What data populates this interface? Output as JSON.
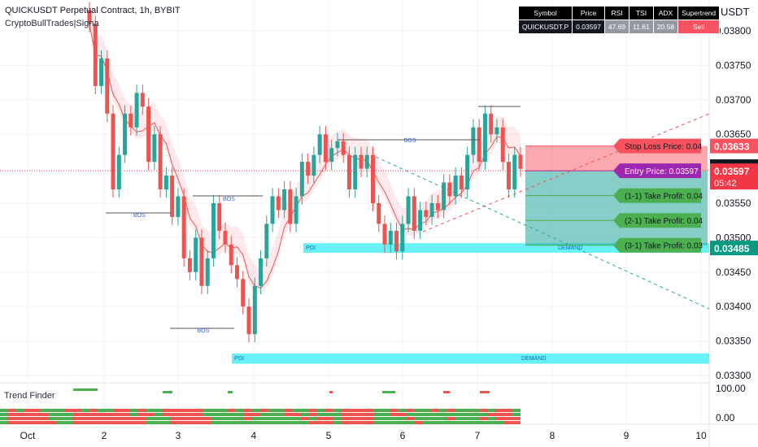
{
  "header": {
    "title": "QUICKUSDT Perpetual Contract, 1h, BYBIT",
    "indicator": "CryptoBullTrades|Signa"
  },
  "price_unit": "USDT",
  "stats_table": {
    "headers": [
      "Symbol",
      "Price",
      "RSI",
      "TSI",
      "ADX",
      "Supertrend"
    ],
    "values": [
      "QUICKUSDT.P",
      "0.03597",
      "47.69",
      "11.61",
      "20.58",
      "Sell"
    ]
  },
  "colors": {
    "up": "#26a69a",
    "down": "#ef5350",
    "stop_loss": "#f7525f",
    "entry": "#9c27b0",
    "take_profit": "#4caf50",
    "demand_zone": "#4df0f7",
    "price_current": "#131722"
  },
  "chart_data": {
    "type": "candlestick",
    "title": "QUICKUSDT Perpetual Contract, 1h, BYBIT",
    "xlabel": "",
    "ylabel": "",
    "ylim": [
      0.0329,
      0.0383
    ],
    "x_ticks": [
      "Oct",
      "2",
      "3",
      "4",
      "5",
      "6",
      "7",
      "8",
      "9",
      "10"
    ],
    "y_ticks": [
      "0.03800",
      "0.03750",
      "0.03700",
      "0.03650",
      "0.03550",
      "0.03500",
      "0.03450",
      "0.03400",
      "0.03350",
      "0.03300"
    ],
    "grid": true,
    "candles_close": [
      0.0381,
      0.0372,
      0.0376,
      0.0368,
      0.0357,
      0.0362,
      0.0368,
      0.0366,
      0.0371,
      0.0369,
      0.0361,
      0.0365,
      0.0357,
      0.0359,
      0.0353,
      0.0356,
      0.0347,
      0.0345,
      0.035,
      0.0343,
      0.0347,
      0.0355,
      0.0351,
      0.0349,
      0.0346,
      0.0344,
      0.034,
      0.0336,
      0.0343,
      0.0347,
      0.0352,
      0.0356,
      0.0354,
      0.0357,
      0.0352,
      0.0356,
      0.0361,
      0.0359,
      0.0362,
      0.0365,
      0.0361,
      0.0363,
      0.0364,
      0.0362,
      0.0357,
      0.0362,
      0.036,
      0.0362,
      0.0355,
      0.0352,
      0.0349,
      0.0351,
      0.0348,
      0.0352,
      0.0356,
      0.0351,
      0.0354,
      0.0353,
      0.0355,
      0.0354,
      0.0358,
      0.0356,
      0.0359,
      0.0357,
      0.0362,
      0.0366,
      0.0361,
      0.0368,
      0.0365,
      0.0366,
      0.0361,
      0.0357,
      0.0362,
      0.036
    ],
    "current_price": "0.03600",
    "price_labels": {
      "upper": "0.03633",
      "current": "0.03600",
      "price_value": "0.03597",
      "countdown": "05:42",
      "lower": "0.03485"
    },
    "structure_labels": [
      "BOS",
      "BOS",
      "BOS",
      "BOS",
      "BOS"
    ],
    "zones": [
      {
        "left_label": "POI",
        "right_label": "DEMAND",
        "low": 0.03478,
        "high": 0.03492
      },
      {
        "left_label": "POI",
        "right_label": "DEMAND",
        "low": 0.03317,
        "high": 0.03332
      }
    ],
    "trade_labels": {
      "stop_loss": "Stop Loss Price: 0.04",
      "entry": "Entry Price: 0.03597",
      "tp1": "(1-1) Take Profit: 0.04",
      "tp2": "(2-1) Take Profit: 0.04",
      "tp3": "(3-1) Take Profit: 0.03"
    },
    "trade_levels": {
      "stop_loss": 0.03633,
      "entry": 0.03597,
      "tp1": 0.03561,
      "tp2": 0.03525,
      "tp3": 0.03489
    },
    "sub_panel": {
      "label": "Trend Finder",
      "y_ticks": [
        "100.00",
        "0.00"
      ]
    }
  }
}
